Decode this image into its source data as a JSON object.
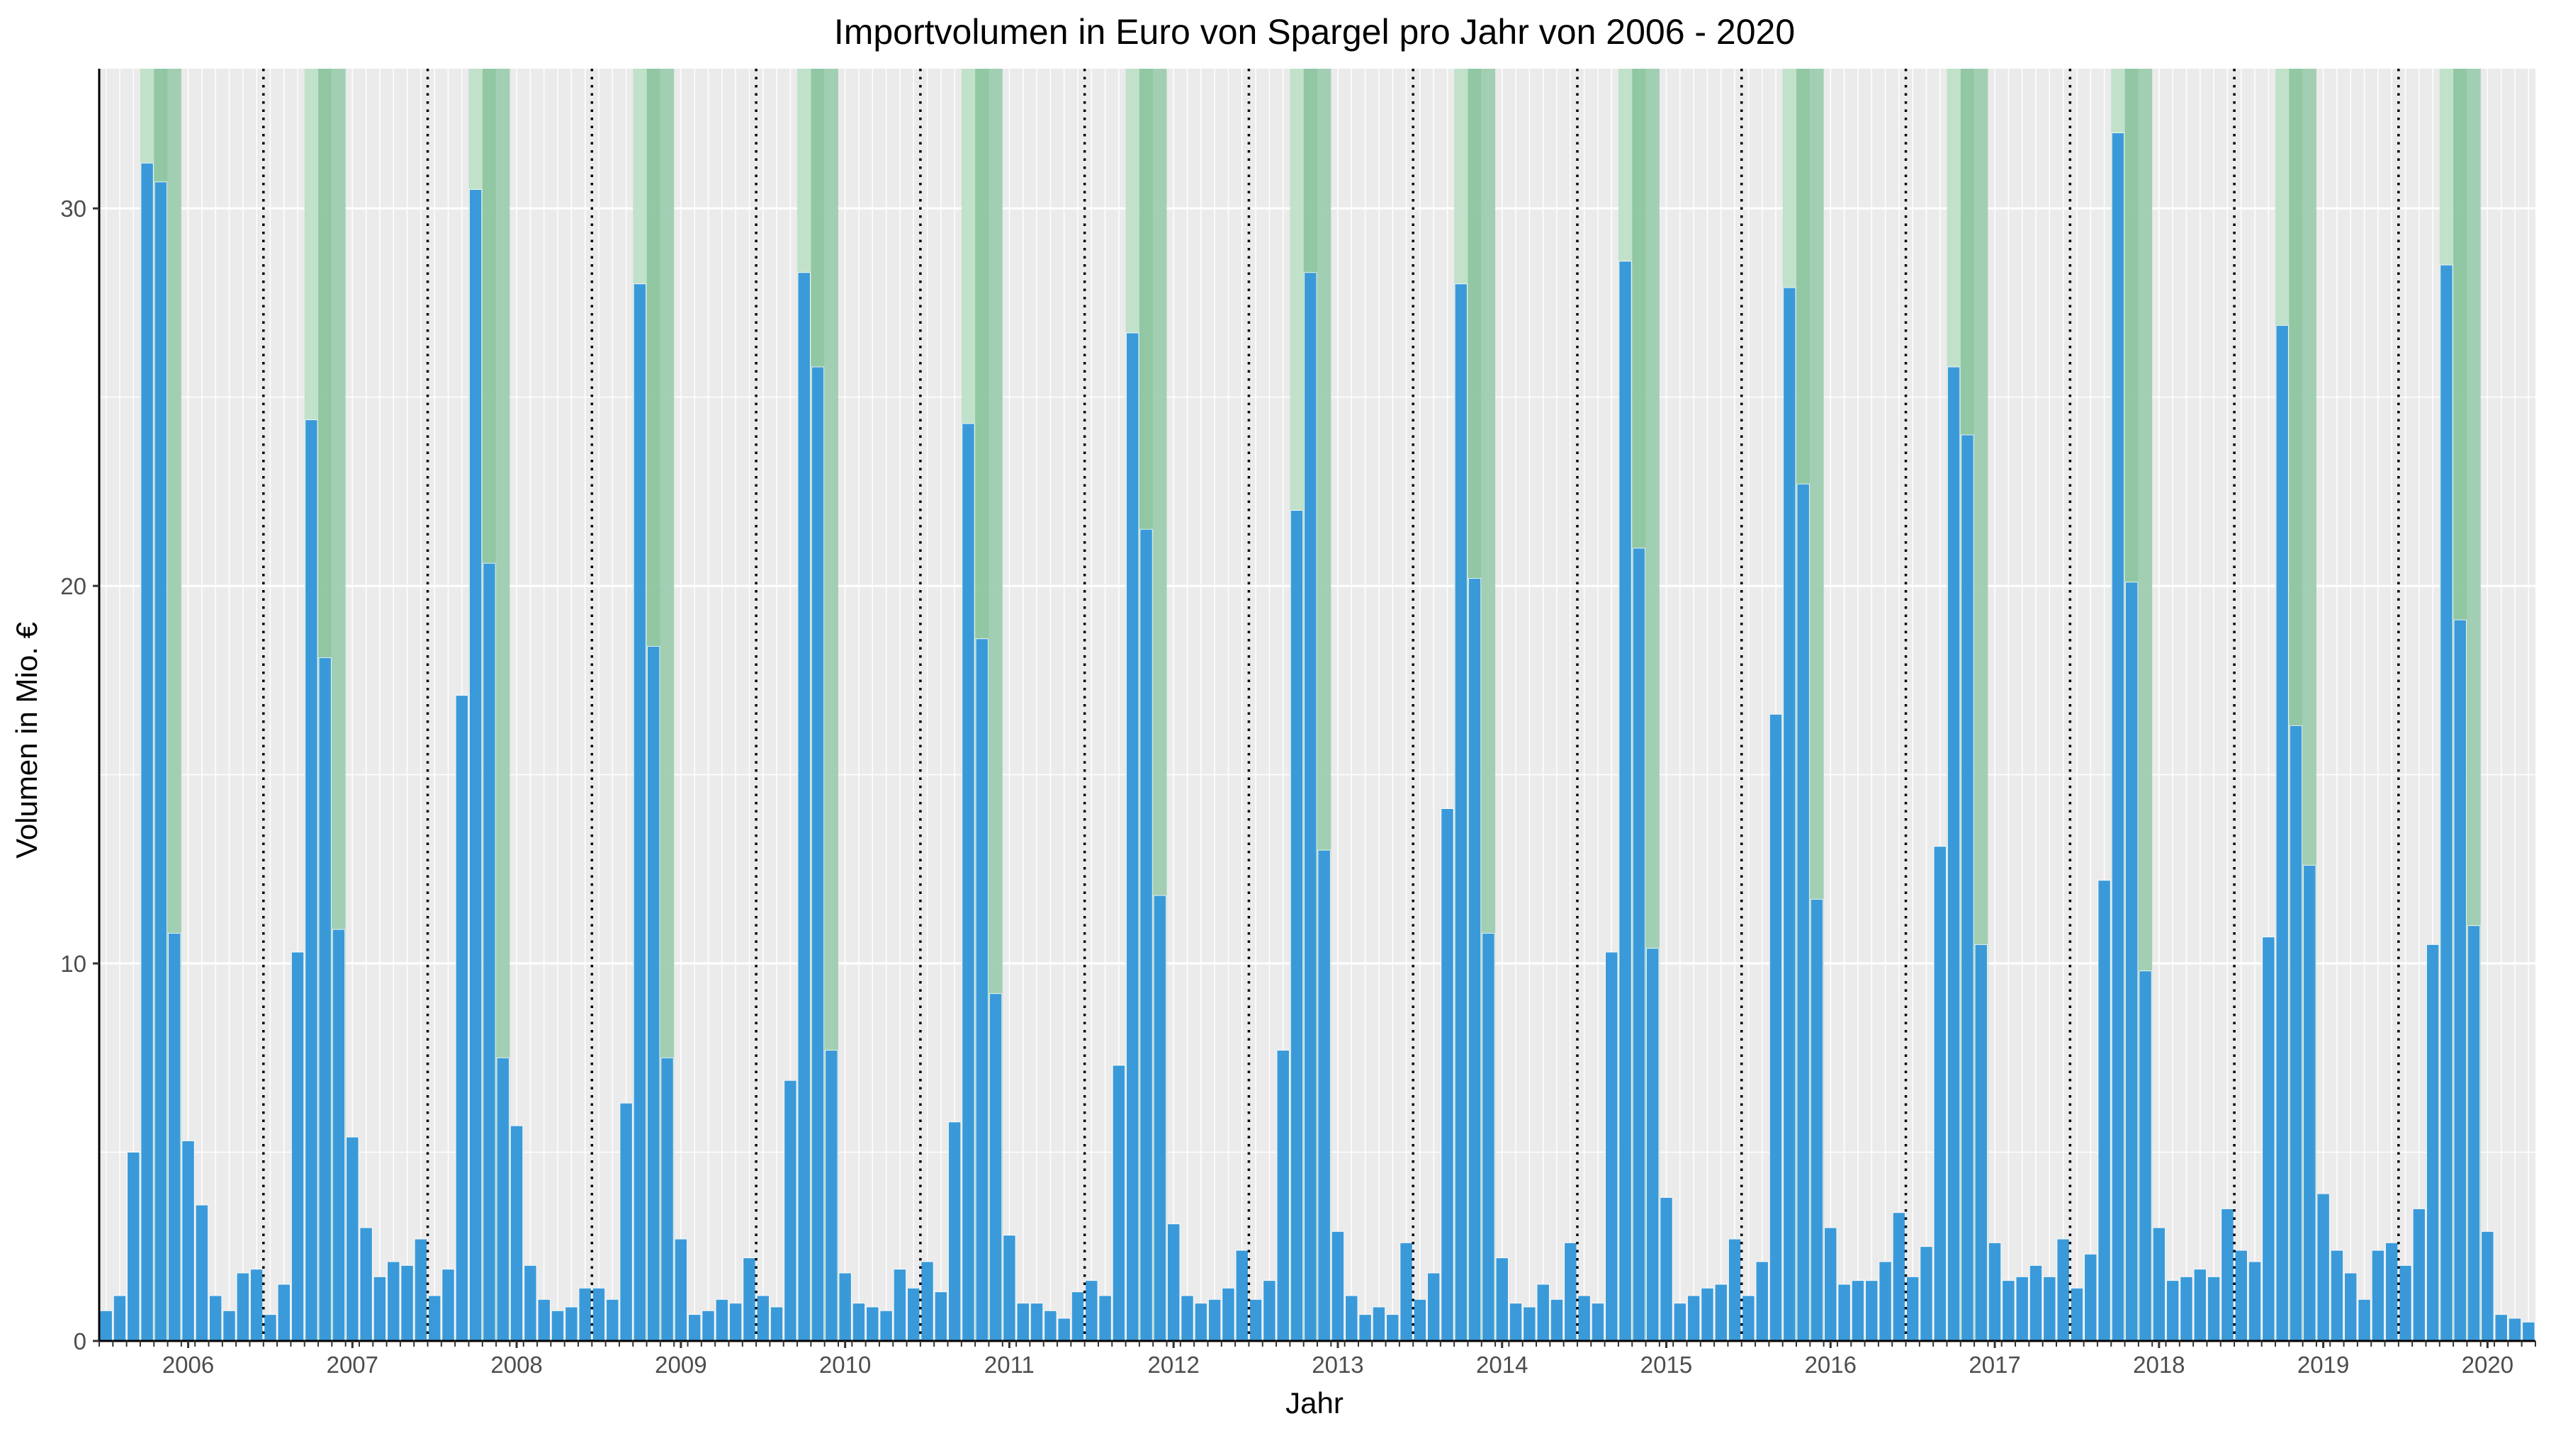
{
  "chart_data": {
    "type": "bar",
    "title": "Importvolumen in Euro von Spargel pro Jahr von 2006 - 2020",
    "xlabel": "Jahr",
    "ylabel": "Volumen in Mio. €",
    "ylim": [
      0,
      33.7
    ],
    "y_ticks": [
      "0",
      "10",
      "20",
      "30"
    ],
    "y_tick_values": [
      0,
      10,
      20,
      30
    ],
    "year_labels": [
      "2006",
      "2007",
      "2008",
      "2009",
      "2010",
      "2011",
      "2012",
      "2013",
      "2014",
      "2015",
      "2016",
      "2017",
      "2018",
      "2019",
      "2020"
    ],
    "months_per_year": 12,
    "year_separator": "dotted",
    "highlight_months": [
      4,
      5,
      6
    ],
    "highlight_colors": [
      "#bfe0c8",
      "#8dc5a0",
      "#9ecdb0"
    ],
    "bar_color": "#3a9ad9",
    "panel_background": "#ebebeb",
    "grid": true,
    "legend": "none",
    "series": [
      {
        "values": [
          0.8,
          1.2,
          5.0,
          31.2,
          30.7,
          10.8,
          5.3,
          3.6,
          1.2,
          0.8,
          1.8,
          1.9,
          0.7,
          1.5,
          10.3,
          24.4,
          18.1,
          10.9,
          5.4,
          3.0,
          1.7,
          2.1,
          2.0,
          2.7,
          1.2,
          1.9,
          17.1,
          30.5,
          20.6,
          7.5,
          5.7,
          2.0,
          1.1,
          0.8,
          0.9,
          1.4,
          1.4,
          1.1,
          6.3,
          28.0,
          18.4,
          7.5,
          2.7,
          0.7,
          0.8,
          1.1,
          1.0,
          2.2,
          1.2,
          0.9,
          6.9,
          28.3,
          25.8,
          7.7,
          1.8,
          1.0,
          0.9,
          0.8,
          1.9,
          1.4,
          2.1,
          1.3,
          5.8,
          24.3,
          18.6,
          9.2,
          2.8,
          1.0,
          1.0,
          0.8,
          0.6,
          1.3,
          1.6,
          1.2,
          7.3,
          26.7,
          21.5,
          11.8,
          3.1,
          1.2,
          1.0,
          1.1,
          1.4,
          2.4,
          1.1,
          1.6,
          7.7,
          22.0,
          28.3,
          13.0,
          2.9,
          1.2,
          0.7,
          0.9,
          0.7,
          2.6,
          1.1,
          1.8,
          14.1,
          28.0,
          20.2,
          10.8,
          2.2,
          1.0,
          0.9,
          1.5,
          1.1,
          2.6,
          1.2,
          1.0,
          10.3,
          28.6,
          21.0,
          10.4,
          3.8,
          1.0,
          1.2,
          1.4,
          1.5,
          2.7,
          1.2,
          2.1,
          16.6,
          27.9,
          22.7,
          11.7,
          3.0,
          1.5,
          1.6,
          1.6,
          2.1,
          3.4,
          1.7,
          2.5,
          13.1,
          25.8,
          24.0,
          10.5,
          2.6,
          1.6,
          1.7,
          2.0,
          1.7,
          2.7,
          1.4,
          2.3,
          12.2,
          32.0,
          20.1,
          9.8,
          3.0,
          1.6,
          1.7,
          1.9,
          1.7,
          3.5,
          2.4,
          2.1,
          10.7,
          26.9,
          16.3,
          12.6,
          3.9,
          2.4,
          1.8,
          1.1,
          2.4,
          2.6,
          2.0,
          3.5,
          10.5,
          28.5,
          19.1,
          11.0,
          2.9,
          0.7,
          0.6,
          0.5
        ]
      }
    ]
  }
}
